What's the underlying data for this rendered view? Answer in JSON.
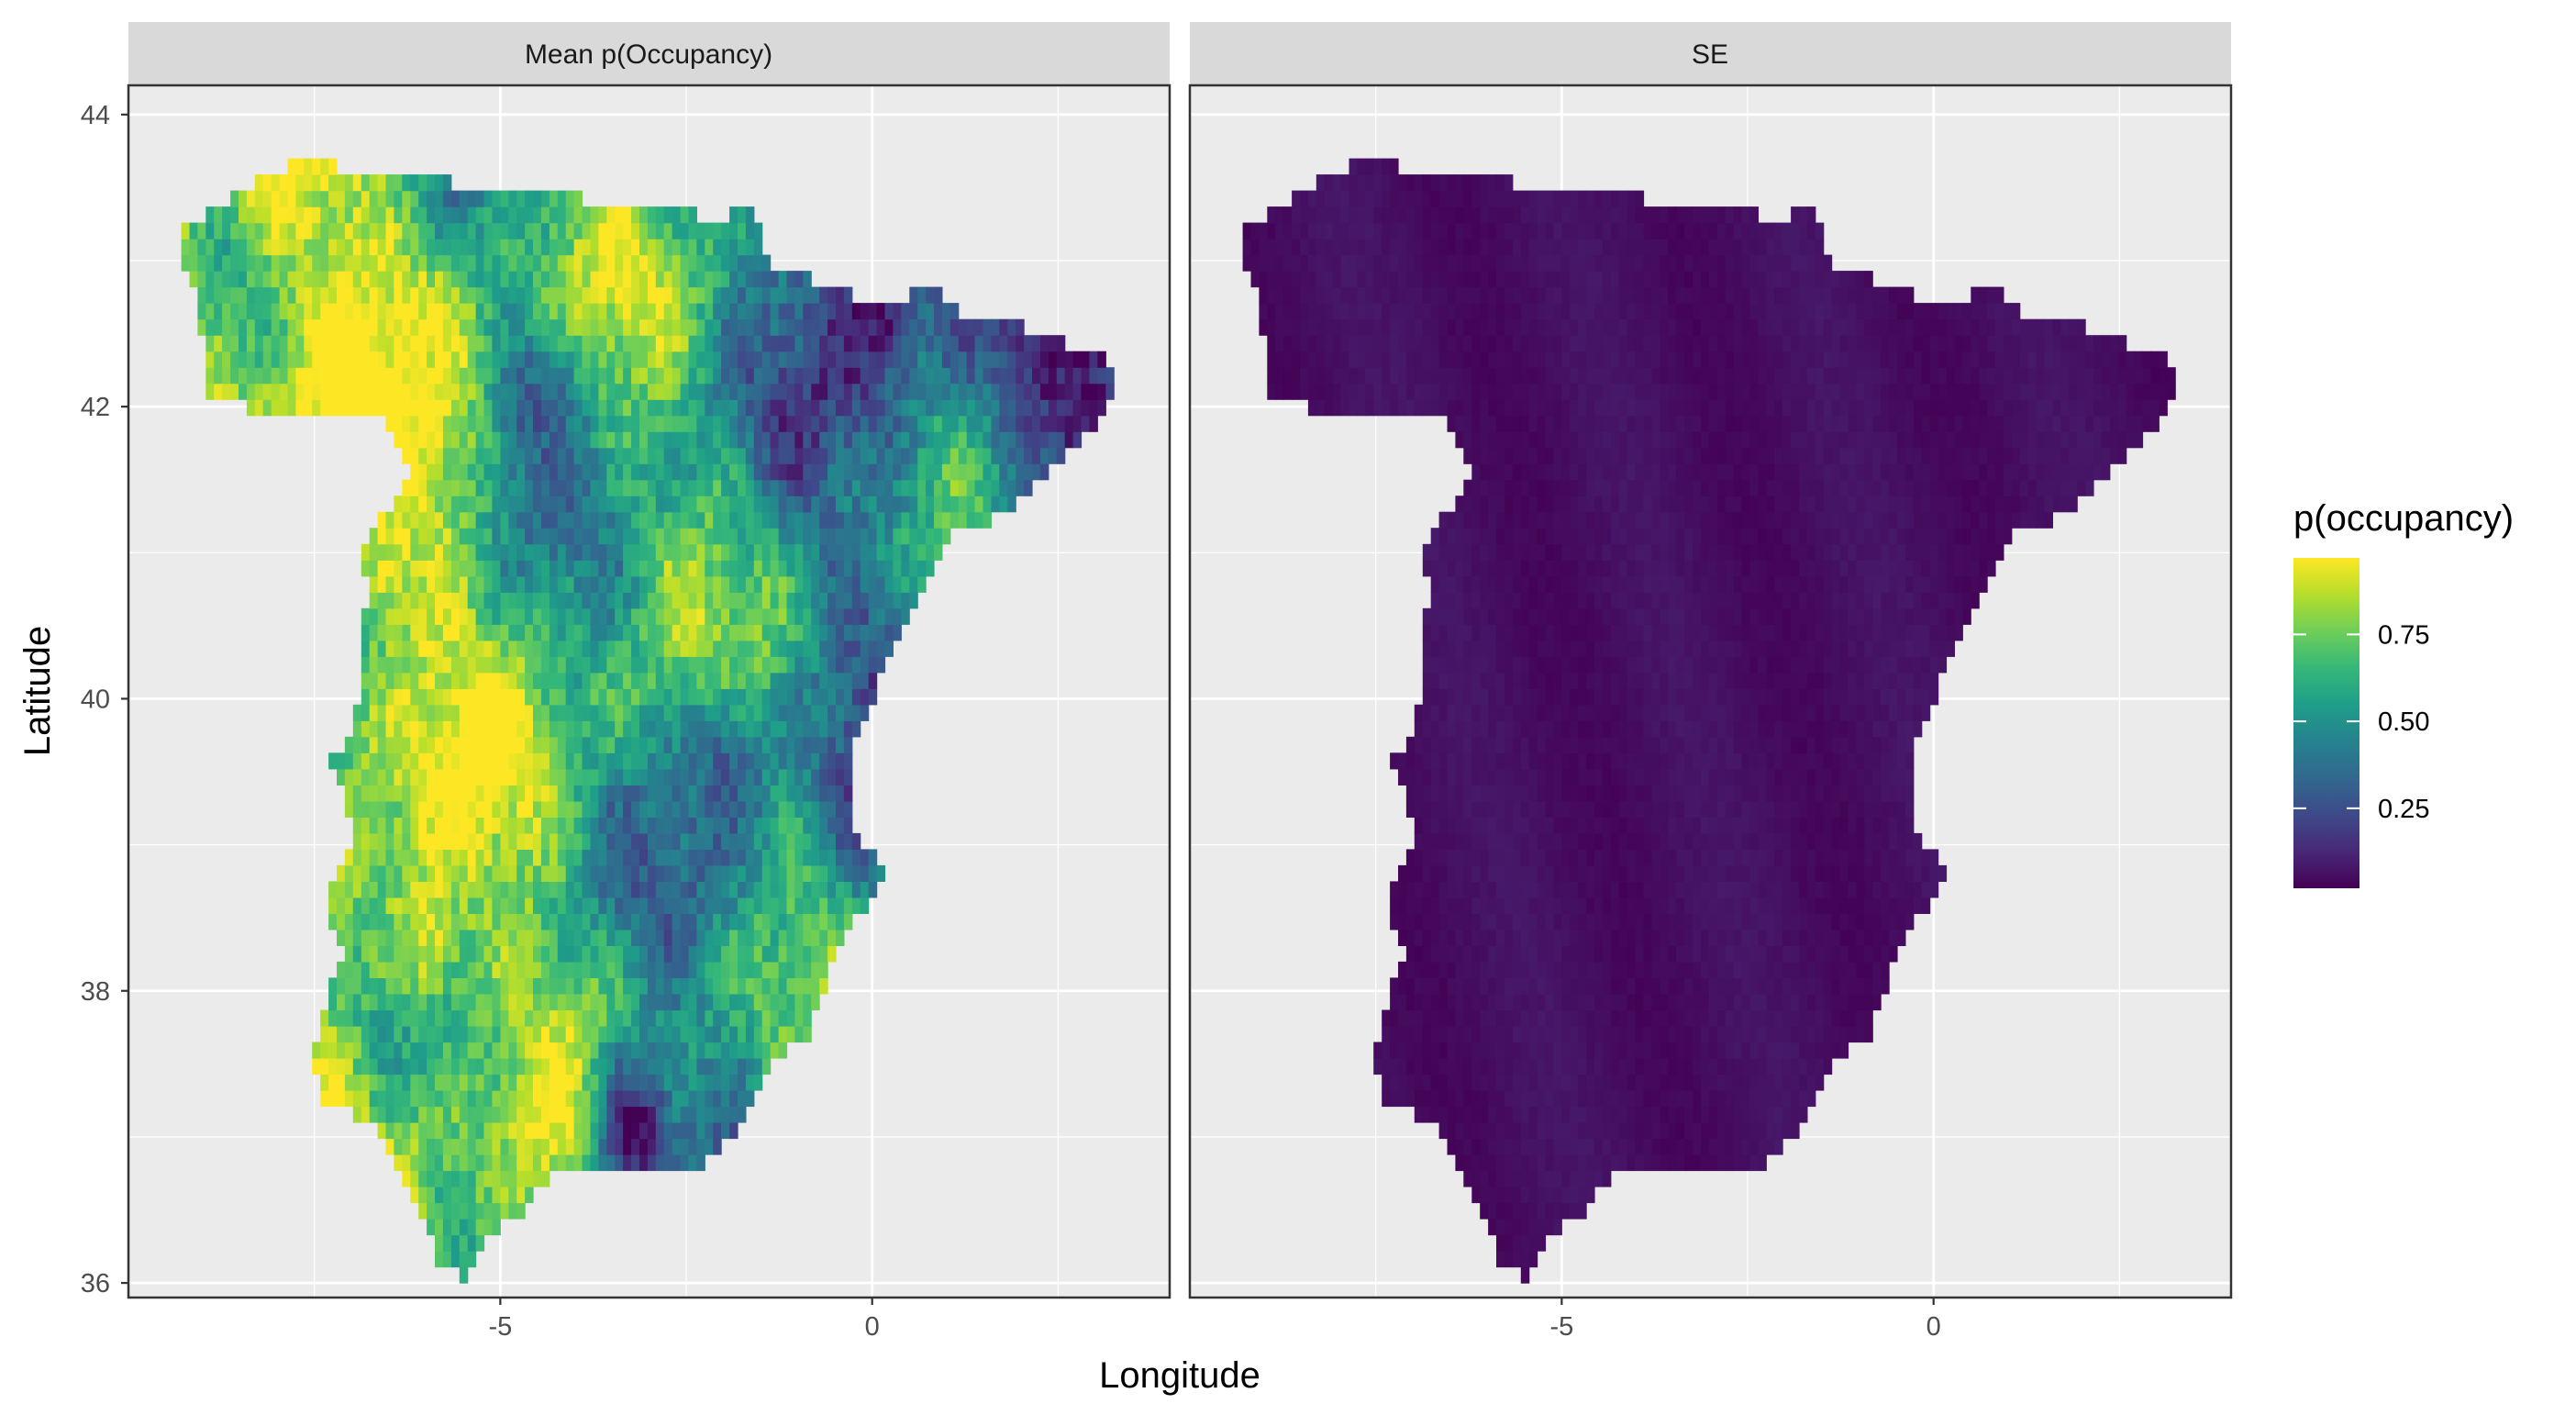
{
  "chart_data": {
    "type": "heatmap",
    "description_free": true,
    "panels": [
      {
        "strip_label": "Mean p(Occupancy)",
        "variable": "mean"
      },
      {
        "strip_label": "SE",
        "variable": "se"
      }
    ],
    "xlabel": "Longitude",
    "ylabel": "Latitude",
    "xlim": [
      -10,
      4
    ],
    "ylim": [
      35.9,
      44.2
    ],
    "x_ticks": [
      -5,
      0
    ],
    "x_tick_labels": [
      "-5",
      "0"
    ],
    "y_ticks": [
      36,
      38,
      40,
      42,
      44
    ],
    "y_tick_labels": [
      "36",
      "38",
      "40",
      "42",
      "44"
    ],
    "x_minor_gridlines": [
      -7.5,
      -2.5,
      2.5
    ],
    "y_minor_gridlines": [
      37,
      39,
      41,
      43
    ],
    "grid": true,
    "legend": {
      "title": "p(occupancy)",
      "placement": "right",
      "breaks": [
        0.25,
        0.5,
        0.75
      ],
      "break_labels": [
        "0.25",
        "0.50",
        "0.75"
      ],
      "range": [
        0.02,
        0.97
      ],
      "palette": [
        "#440154",
        "#482878",
        "#3e4a89",
        "#31688e",
        "#26828e",
        "#1f9e89",
        "#35b779",
        "#6ece58",
        "#b5de2b",
        "#fde725"
      ]
    },
    "region_outline_lonlat": [
      [
        -9.3,
        43.2
      ],
      [
        -8.9,
        43.35
      ],
      [
        -8.3,
        43.55
      ],
      [
        -7.6,
        43.72
      ],
      [
        -7.0,
        43.6
      ],
      [
        -6.0,
        43.55
      ],
      [
        -5.0,
        43.5
      ],
      [
        -4.0,
        43.43
      ],
      [
        -3.2,
        43.4
      ],
      [
        -2.2,
        43.3
      ],
      [
        -1.6,
        43.33
      ],
      [
        -1.4,
        42.95
      ],
      [
        -0.7,
        42.85
      ],
      [
        0.0,
        42.7
      ],
      [
        0.8,
        42.8
      ],
      [
        1.5,
        42.55
      ],
      [
        2.0,
        42.55
      ],
      [
        2.5,
        42.45
      ],
      [
        3.15,
        42.35
      ],
      [
        3.25,
        42.25
      ],
      [
        3.15,
        41.95
      ],
      [
        2.4,
        41.55
      ],
      [
        1.7,
        41.25
      ],
      [
        1.0,
        41.1
      ],
      [
        0.6,
        40.7
      ],
      [
        0.4,
        40.5
      ],
      [
        0.0,
        40.0
      ],
      [
        -0.2,
        39.8
      ],
      [
        -0.3,
        39.35
      ],
      [
        -0.2,
        39.05
      ],
      [
        0.2,
        38.85
      ],
      [
        0.2,
        38.75
      ],
      [
        -0.4,
        38.4
      ],
      [
        -0.7,
        37.95
      ],
      [
        -0.85,
        37.65
      ],
      [
        -1.3,
        37.55
      ],
      [
        -1.6,
        37.3
      ],
      [
        -1.9,
        37.0
      ],
      [
        -2.3,
        36.8
      ],
      [
        -2.9,
        36.75
      ],
      [
        -3.6,
        36.75
      ],
      [
        -4.3,
        36.75
      ],
      [
        -4.7,
        36.5
      ],
      [
        -5.1,
        36.35
      ],
      [
        -5.5,
        36.05
      ],
      [
        -5.8,
        36.1
      ],
      [
        -6.1,
        36.5
      ],
      [
        -6.4,
        36.85
      ],
      [
        -6.7,
        37.05
      ],
      [
        -7.1,
        37.2
      ],
      [
        -7.45,
        37.2
      ],
      [
        -7.5,
        37.6
      ],
      [
        -7.4,
        37.85
      ],
      [
        -7.1,
        38.3
      ],
      [
        -7.3,
        38.5
      ],
      [
        -7.25,
        38.8
      ],
      [
        -7.0,
        39.05
      ],
      [
        -7.1,
        39.4
      ],
      [
        -7.4,
        39.6
      ],
      [
        -7.35,
        39.65
      ],
      [
        -7.0,
        39.7
      ],
      [
        -6.9,
        40.0
      ],
      [
        -6.85,
        40.3
      ],
      [
        -6.8,
        40.8
      ],
      [
        -6.9,
        41.05
      ],
      [
        -6.4,
        41.35
      ],
      [
        -6.2,
        41.6
      ],
      [
        -6.6,
        41.95
      ],
      [
        -7.1,
        41.95
      ],
      [
        -7.9,
        41.9
      ],
      [
        -8.1,
        41.95
      ],
      [
        -8.4,
        42.0
      ],
      [
        -8.9,
        42.0
      ],
      [
        -8.95,
        42.3
      ],
      [
        -9.1,
        42.8
      ],
      [
        -9.3,
        43.05
      ]
    ],
    "notable_mean_patterns": [
      {
        "lon": -6.0,
        "lat": 42.35,
        "value": 0.95
      },
      {
        "lon": -6.5,
        "lat": 41.0,
        "value": 0.9
      },
      {
        "lon": -6.0,
        "lat": 38.4,
        "value": 0.9
      },
      {
        "lon": -4.5,
        "lat": 42.0,
        "value": 0.3
      },
      {
        "lon": -2.0,
        "lat": 39.5,
        "value": 0.3
      },
      {
        "lon": 2.8,
        "lat": 42.0,
        "value": 0.1
      },
      {
        "lon": 0.0,
        "lat": 42.7,
        "value": 0.05
      },
      {
        "lon": -3.2,
        "lat": 37.05,
        "value": 0.05
      }
    ],
    "se_value_range": [
      0.02,
      0.12
    ]
  }
}
